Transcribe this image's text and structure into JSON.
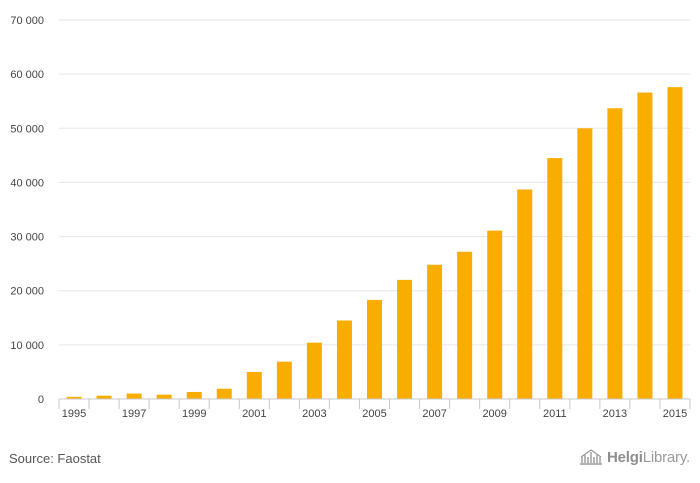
{
  "chart_data": {
    "type": "bar",
    "categories": [
      "1995",
      "1996",
      "1997",
      "1998",
      "1999",
      "2000",
      "2001",
      "2002",
      "2003",
      "2004",
      "2005",
      "2006",
      "2007",
      "2008",
      "2009",
      "2010",
      "2011",
      "2012",
      "2013",
      "2014",
      "2015"
    ],
    "x_tick_labels": [
      "1995",
      "1997",
      "1999",
      "2001",
      "2003",
      "2005",
      "2007",
      "2009",
      "2011",
      "2013",
      "2015"
    ],
    "values": [
      400,
      600,
      1000,
      800,
      1300,
      1900,
      5000,
      6900,
      10400,
      14500,
      18300,
      22000,
      24800,
      27200,
      31100,
      38700,
      44500,
      50000,
      53700,
      56600,
      57600
    ],
    "ylim": [
      0,
      70000
    ],
    "y_ticks": [
      0,
      10000,
      20000,
      30000,
      40000,
      50000,
      60000,
      70000
    ],
    "y_tick_labels": [
      "0",
      "10 000",
      "20 000",
      "30 000",
      "40 000",
      "50 000",
      "60 000",
      "70 000"
    ],
    "bar_color": "#f9ad00",
    "grid": true,
    "title": "",
    "xlabel": "",
    "ylabel": ""
  },
  "footer": {
    "source": "Source: Faostat",
    "brand_strong": "Helgi",
    "brand_rest": "Library."
  }
}
